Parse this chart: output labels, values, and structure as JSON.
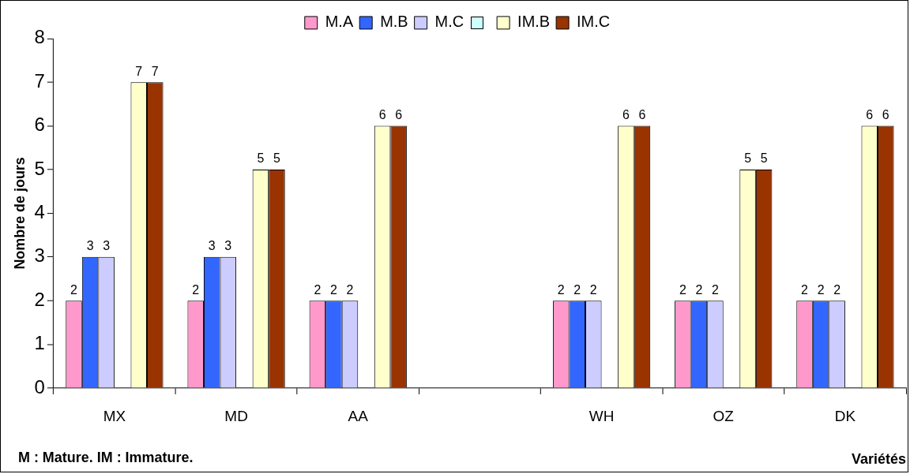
{
  "chart_data": {
    "type": "bar",
    "xlabel": "Variétés",
    "ylabel": "Nombre de jours",
    "categories": [
      "MX",
      "MD",
      "AA",
      null,
      "WH",
      "OZ",
      "DK"
    ],
    "series": [
      {
        "name": "M.A",
        "color": "#ff99cc",
        "values": [
          2,
          2,
          2,
          null,
          2,
          2,
          2
        ]
      },
      {
        "name": "M.B",
        "color": "#3366ff",
        "values": [
          3,
          3,
          2,
          null,
          2,
          2,
          2
        ]
      },
      {
        "name": "M.C",
        "color": "#ccccff",
        "values": [
          3,
          3,
          2,
          null,
          2,
          2,
          2
        ]
      },
      {
        "color": "#ccffff",
        "values": [
          null,
          null,
          null,
          null,
          null,
          null,
          null
        ]
      },
      {
        "name": "IM.B",
        "color": "#ffffcc",
        "values": [
          7,
          5,
          6,
          null,
          6,
          5,
          6
        ]
      },
      {
        "name": "IM.C",
        "color": "#993300",
        "values": [
          7,
          5,
          6,
          null,
          6,
          5,
          6
        ]
      }
    ],
    "ylim": [
      0,
      8
    ],
    "yticks": [
      0,
      1,
      2,
      3,
      4,
      5,
      6,
      7,
      8
    ],
    "grid": false,
    "legend": "top",
    "data_labels": true,
    "annotations": [
      "M : Mature. IM : Immature."
    ]
  }
}
